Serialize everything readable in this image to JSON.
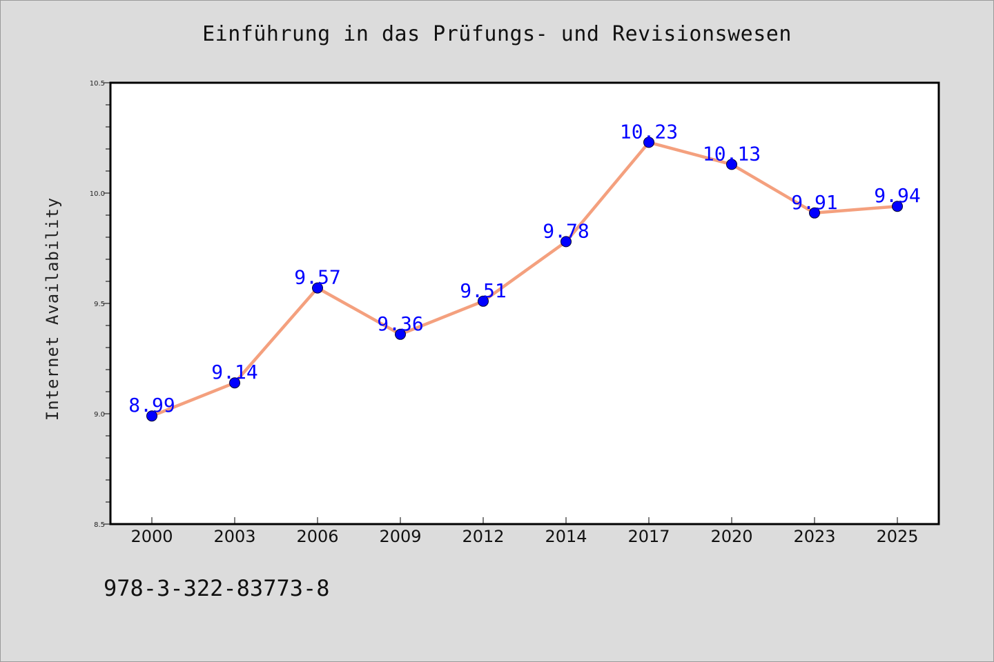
{
  "chart_data": {
    "type": "line",
    "title": "Einführung in das Prüfungs- und Revisionswesen",
    "ylabel": "Internet Availability",
    "xlabel": "",
    "categories": [
      "2000",
      "2003",
      "2006",
      "2009",
      "2012",
      "2014",
      "2017",
      "2020",
      "2023",
      "2025"
    ],
    "values": [
      8.99,
      9.14,
      9.57,
      9.36,
      9.51,
      9.78,
      10.23,
      10.13,
      9.91,
      9.94
    ],
    "value_labels": [
      "8.99",
      "9.14",
      "9.57",
      "9.36",
      "9.51",
      "9.78",
      "10.23",
      "10.13",
      "9.91",
      "9.94"
    ],
    "ylim": [
      8.5,
      10.5
    ],
    "yticks": [
      "8.5",
      "9.0",
      "9.5",
      "10.0",
      "10.5"
    ],
    "grid": false,
    "colors": {
      "line": "#f4a07e",
      "marker": "#0000ff",
      "data_label": "#0000ff",
      "background": "#dcdcdc",
      "plot_area": "#ffffff"
    }
  },
  "footer": {
    "isbn": "978-3-322-83773-8"
  }
}
